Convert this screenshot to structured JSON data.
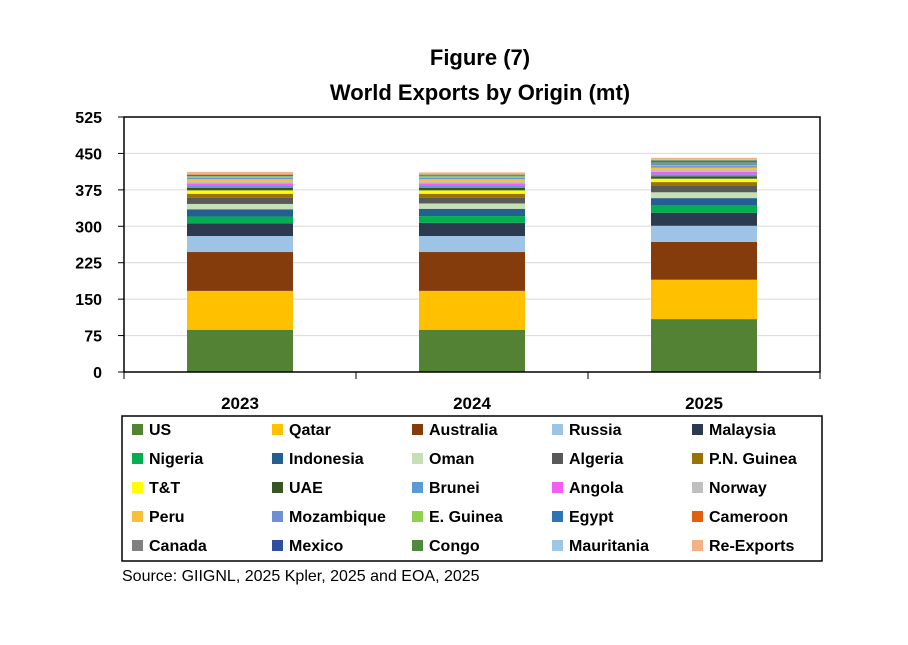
{
  "chart_data": {
    "type": "bar",
    "stacked": true,
    "title": "Figure (7)",
    "subtitle": "World Exports by Origin (mt)",
    "xlabel": "",
    "ylabel": "",
    "ylim": [
      0,
      525
    ],
    "yticks": [
      "0",
      "75",
      "150",
      "225",
      "300",
      "375",
      "450",
      "525"
    ],
    "grid": true,
    "legend_position": "bottom",
    "categories": [
      "2023",
      "2024",
      "2025"
    ],
    "series": [
      {
        "name": "US",
        "color": "#548235",
        "values": [
          87,
          87,
          109
        ]
      },
      {
        "name": "Qatar",
        "color": "#FFC000",
        "values": [
          80,
          80,
          81
        ]
      },
      {
        "name": "Australia",
        "color": "#843C0C",
        "values": [
          80,
          80,
          78
        ]
      },
      {
        "name": "Russia",
        "color": "#9DC3E6",
        "values": [
          33,
          33,
          33
        ]
      },
      {
        "name": "Malaysia",
        "color": "#2B3A4F",
        "values": [
          26,
          27,
          27
        ]
      },
      {
        "name": "Nigeria",
        "color": "#00B050",
        "values": [
          14,
          14,
          15
        ]
      },
      {
        "name": "Indonesia",
        "color": "#255E91",
        "values": [
          15,
          15,
          15
        ]
      },
      {
        "name": "Oman",
        "color": "#C5E0B4",
        "values": [
          11,
          11,
          12
        ]
      },
      {
        "name": "Algeria",
        "color": "#595959",
        "values": [
          13,
          12,
          13
        ]
      },
      {
        "name": "P.N. Guinea",
        "color": "#997300",
        "values": [
          8,
          8,
          8
        ]
      },
      {
        "name": "T&T",
        "color": "#FFFF00",
        "values": [
          7,
          7,
          7
        ]
      },
      {
        "name": "UAE",
        "color": "#375623",
        "values": [
          5,
          5,
          5
        ]
      },
      {
        "name": "Brunei",
        "color": "#5B9BD5",
        "values": [
          4,
          4,
          4
        ]
      },
      {
        "name": "Angola",
        "color": "#F45CF4",
        "values": [
          5,
          5,
          5
        ]
      },
      {
        "name": "Norway",
        "color": "#BFBFBF",
        "values": [
          5,
          5,
          5
        ]
      },
      {
        "name": "Peru",
        "color": "#F8C03A",
        "values": [
          4,
          4,
          4
        ]
      },
      {
        "name": "Mozambique",
        "color": "#6F8FD4",
        "values": [
          3,
          3,
          3
        ]
      },
      {
        "name": "E. Guinea",
        "color": "#92D050",
        "values": [
          3,
          3,
          3
        ]
      },
      {
        "name": "Egypt",
        "color": "#2E75B6",
        "values": [
          3,
          2,
          2
        ]
      },
      {
        "name": "Cameroon",
        "color": "#E06010",
        "values": [
          1,
          1,
          1
        ]
      },
      {
        "name": "Canada",
        "color": "#808080",
        "values": [
          0,
          0,
          2
        ]
      },
      {
        "name": "Mexico",
        "color": "#2F4EA0",
        "values": [
          0,
          0,
          2
        ]
      },
      {
        "name": "Congo",
        "color": "#4E8A3E",
        "values": [
          0,
          1,
          2
        ]
      },
      {
        "name": "Mauritania",
        "color": "#9EC6E8",
        "values": [
          0,
          0,
          2
        ]
      },
      {
        "name": "Re-Exports",
        "color": "#F4B183",
        "values": [
          5,
          4,
          3
        ]
      }
    ]
  },
  "source": "Source: GIIGNL, 2025 Kpler, 2025 and EOA, 2025"
}
